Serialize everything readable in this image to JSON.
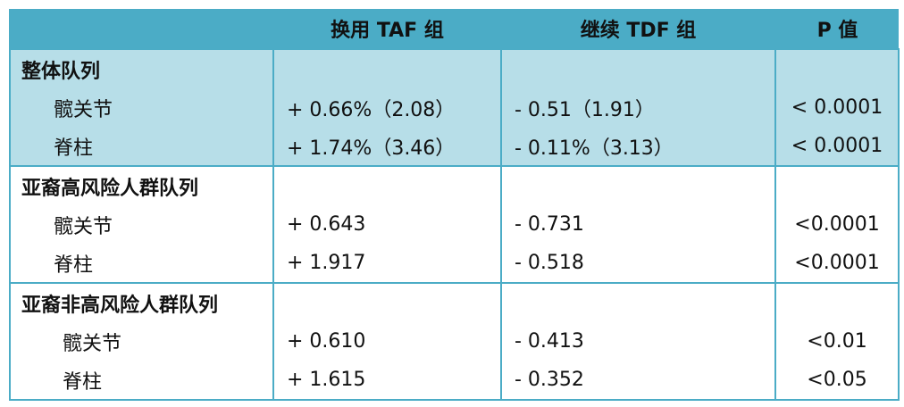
{
  "header": {
    "columns": [
      "换用 TAF 组",
      "继续 TDF 组",
      "P 值"
    ]
  },
  "groups": [
    {
      "title": "整体队列",
      "rows": [
        [
          "髋关节",
          "+ 0.66%（2.08）",
          "- 0.51（1.91）",
          "< 0.0001"
        ],
        [
          "脊柱",
          "+ 1.74%（3.46）",
          "- 0.11%（3.13）",
          "< 0.0001"
        ]
      ]
    },
    {
      "title": "亚裔高风险人群队列",
      "rows": [
        [
          "髋关节",
          "+ 0.643",
          "- 0.731",
          "<0.0001"
        ],
        [
          "脊柱",
          "+ 1.917",
          "- 0.518",
          "<0.0001"
        ]
      ]
    },
    {
      "title": "亚裔非高风险人群队列",
      "rows": [
        [
          "髋关节",
          "+ 0.610",
          "- 0.413",
          "<0.01"
        ],
        [
          "脊柱",
          "+ 1.615",
          "- 0.352",
          "<0.05"
        ]
      ]
    }
  ]
}
